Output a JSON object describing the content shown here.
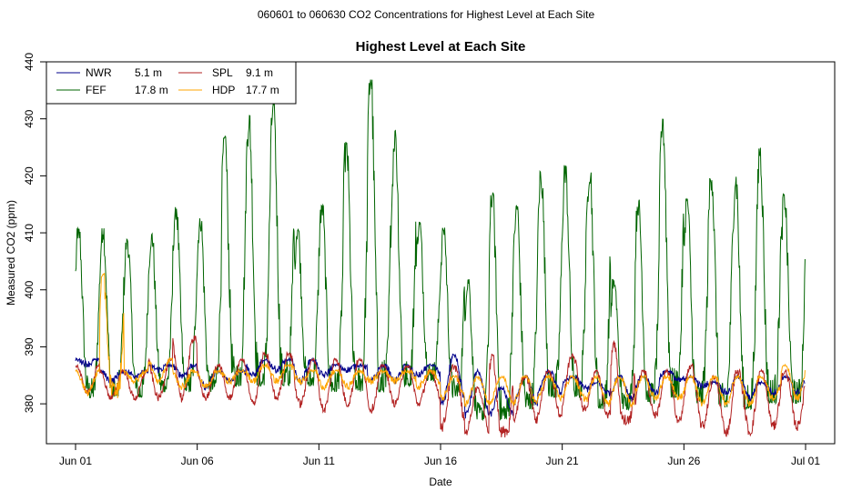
{
  "page": {
    "suptitle": "060601  to  060630 CO2 Concentrations for Highest Level at Each Site"
  },
  "chart_data": {
    "type": "line",
    "title": "Highest Level at Each Site",
    "xlabel": "Date",
    "ylabel": "Measured CO2 (ppm)",
    "xlim": [
      0,
      30
    ],
    "ylim": [
      373,
      440
    ],
    "x_ticks": [
      {
        "value": 0,
        "label": "Jun 01"
      },
      {
        "value": 5,
        "label": "Jun 06"
      },
      {
        "value": 10,
        "label": "Jun 11"
      },
      {
        "value": 15,
        "label": "Jun 16"
      },
      {
        "value": 20,
        "label": "Jun 21"
      },
      {
        "value": 25,
        "label": "Jun 26"
      },
      {
        "value": 30,
        "label": "Jul 01"
      }
    ],
    "y_ticks": [
      380,
      390,
      400,
      410,
      420,
      430,
      440
    ],
    "grid": false,
    "legend_position": "top-left",
    "series": [
      {
        "name": "NWR",
        "height": "5.1 m",
        "color": "#00008b",
        "daily_min": [
          387,
          384,
          385,
          386,
          385,
          383,
          384,
          385,
          386,
          384,
          385,
          386,
          384,
          384,
          385,
          380,
          378,
          378,
          380,
          382,
          383,
          382,
          381,
          382,
          384,
          383,
          382,
          381,
          382,
          382
        ],
        "daily_max": [
          388,
          386,
          386,
          387,
          387,
          386,
          386,
          388,
          388,
          388,
          387,
          387,
          387,
          387,
          387,
          389,
          386,
          383,
          385,
          386,
          385,
          384,
          385,
          385,
          386,
          385,
          384,
          385,
          384,
          385
        ]
      },
      {
        "name": "FEF",
        "height": "17.8 m",
        "color": "#006400",
        "daily_min": [
          382,
          382,
          382,
          383,
          383,
          383,
          384,
          384,
          384,
          384,
          383,
          383,
          383,
          384,
          385,
          382,
          378,
          378,
          380,
          382,
          382,
          380,
          380,
          381,
          382,
          381,
          380,
          380,
          381,
          381
        ],
        "daily_max": [
          411,
          411,
          409,
          410,
          415,
          413,
          427,
          431,
          433,
          411,
          415,
          426,
          438,
          428,
          412,
          411,
          402,
          417,
          415,
          421,
          422,
          422,
          402,
          416,
          430,
          416,
          421,
          420,
          425,
          417
        ]
      },
      {
        "name": "SPL",
        "height": "9.1 m",
        "color": "#b22222",
        "daily_min": [
          382,
          381,
          381,
          381,
          381,
          381,
          381,
          380,
          381,
          380,
          379,
          380,
          379,
          380,
          380,
          376,
          375,
          375,
          377,
          378,
          379,
          378,
          377,
          378,
          377,
          376,
          375,
          375,
          376,
          376
        ],
        "daily_max": [
          387,
          386,
          386,
          388,
          392,
          387,
          388,
          389,
          389,
          388,
          388,
          388,
          387,
          387,
          386,
          387,
          383,
          389,
          385,
          386,
          389,
          386,
          391,
          386,
          386,
          387,
          385,
          386,
          386,
          386
        ]
      },
      {
        "name": "HDP",
        "height": "17.7 m",
        "color": "#ffa500",
        "daily_min": [
          382,
          382,
          384,
          384,
          383,
          383,
          384,
          384,
          384,
          384,
          383,
          383,
          384,
          384,
          383,
          381,
          380,
          380,
          380,
          381,
          381,
          380,
          380,
          381,
          381,
          380,
          380,
          380,
          381,
          381
        ],
        "daily_max": [
          386,
          403,
          386,
          388,
          386,
          386,
          386,
          387,
          387,
          386,
          386,
          386,
          386,
          386,
          386,
          385,
          385,
          385,
          385,
          385,
          385,
          385,
          385,
          385,
          385,
          385,
          385,
          385,
          385,
          387
        ]
      }
    ]
  }
}
